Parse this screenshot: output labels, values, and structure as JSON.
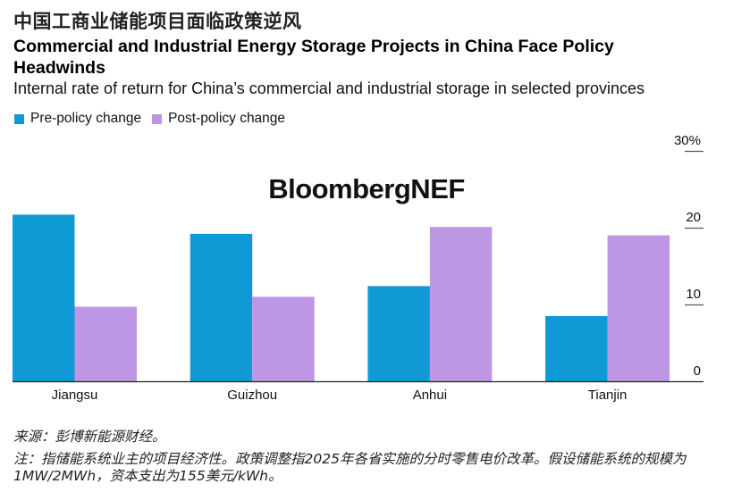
{
  "header": {
    "cn_title": "中国工商业储能项目面临政策逆风",
    "title": "Commercial and Industrial Energy Storage Projects in China Face Policy Headwinds",
    "subtitle": "Internal rate of return for China’s commercial and industrial storage in selected provinces"
  },
  "watermark": "BloombergNEF",
  "legend": [
    {
      "label": "Pre-policy change",
      "color": "#0f9ad6"
    },
    {
      "label": "Post-policy change",
      "color": "#bd97e3"
    }
  ],
  "chart_data": {
    "type": "bar",
    "title": "Commercial and Industrial Energy Storage Projects in China Face Policy Headwinds",
    "subtitle": "Internal rate of return for China’s commercial and industrial storage in selected provinces",
    "xlabel": "",
    "ylabel": "",
    "categories": [
      "Jiangsu",
      "Guizhou",
      "Anhui",
      "Tianjin"
    ],
    "series": [
      {
        "name": "Pre-policy change",
        "color": "#0f9ad6",
        "values": [
          21.7,
          19.2,
          12.4,
          8.5
        ]
      },
      {
        "name": "Post-policy change",
        "color": "#bd97e3",
        "values": [
          9.7,
          11.0,
          20.1,
          19.0
        ]
      }
    ],
    "ylim": [
      0,
      30
    ],
    "yticks": [
      0,
      10,
      20,
      30
    ],
    "ytick_labels": [
      "0",
      "10",
      "20",
      "30%"
    ],
    "y_axis_side": "right",
    "legend_position": "top-left",
    "grid": false
  },
  "footer": {
    "source": "来源：彭博新能源财经。",
    "note": "注：指储能系统业主的项目经济性。政策调整指2025年各省实施的分时零售电价改革。假设储能系统的规模为1MW/2MWh，资本支出为155美元/kWh。"
  }
}
